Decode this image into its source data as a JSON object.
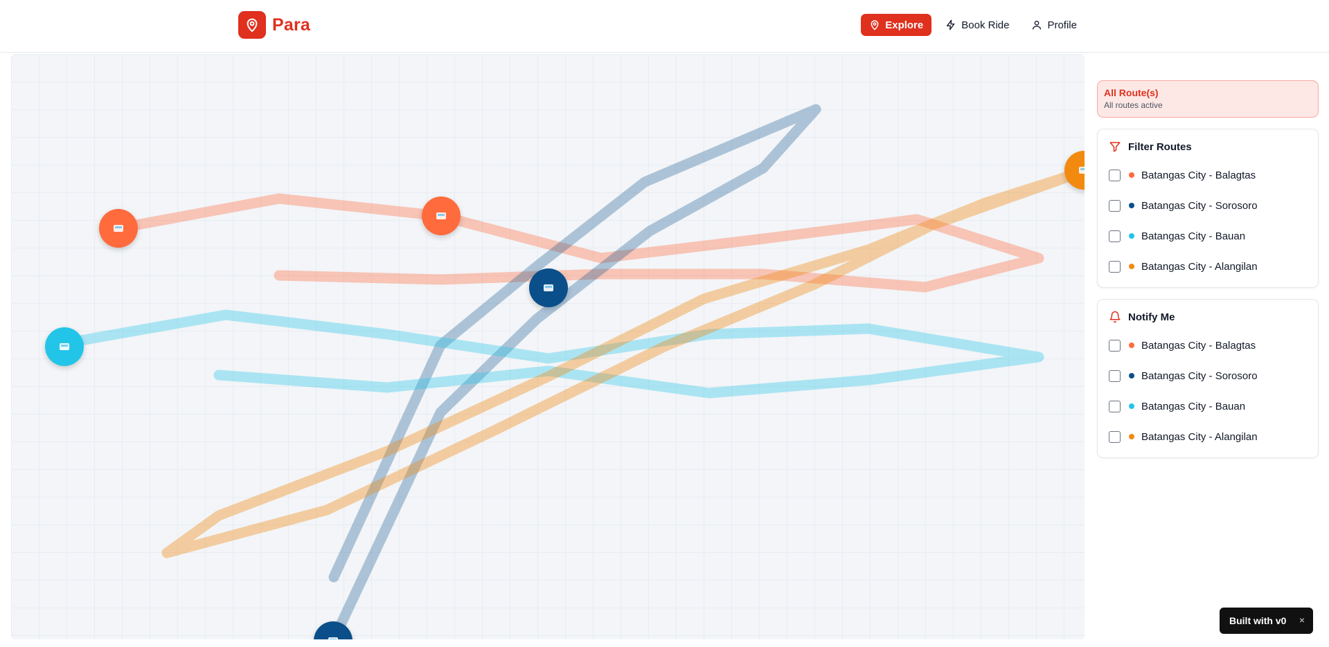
{
  "app": {
    "name": "Para",
    "logo_icon": "map-pin-icon",
    "accent": "#e0301e"
  },
  "nav": {
    "items": [
      {
        "label": "Explore",
        "icon": "map-pin-icon",
        "active": true
      },
      {
        "label": "Book Ride",
        "icon": "bolt-icon",
        "active": false
      },
      {
        "label": "Profile",
        "icon": "user-icon",
        "active": false
      }
    ]
  },
  "map": {
    "routes": [
      {
        "name": "Batangas City - Balagtas",
        "color": "#ff6b3d"
      },
      {
        "name": "Batangas City - Sorosoro",
        "color": "#0a4f8a"
      },
      {
        "name": "Batangas City - Bauan",
        "color": "#22c5e8"
      },
      {
        "name": "Batangas City - Alangilan",
        "color": "#f38a10"
      }
    ],
    "markers": [
      {
        "route": "Batangas City - Balagtas",
        "vehicle": "jeepney-icon"
      },
      {
        "route": "Batangas City - Balagtas",
        "vehicle": "bus-icon"
      },
      {
        "route": "Batangas City - Sorosoro",
        "vehicle": "bus-icon"
      },
      {
        "route": "Batangas City - Bauan",
        "vehicle": "jeepney-icon"
      },
      {
        "route": "Batangas City - Alangilan",
        "vehicle": "bus-icon"
      },
      {
        "route": "Batangas City - Sorosoro",
        "vehicle": "bus-icon"
      }
    ]
  },
  "status": {
    "title": "All Route(s)",
    "subtitle": "All routes active"
  },
  "filter": {
    "title": "Filter Routes",
    "icon": "filter-icon",
    "items": [
      {
        "label": "Batangas City - Balagtas",
        "color": "#ff6b3d",
        "checked": false
      },
      {
        "label": "Batangas City - Sorosoro",
        "color": "#0a4f8a",
        "checked": false
      },
      {
        "label": "Batangas City - Bauan",
        "color": "#22c5e8",
        "checked": false
      },
      {
        "label": "Batangas City - Alangilan",
        "color": "#f38a10",
        "checked": false
      }
    ]
  },
  "notify": {
    "title": "Notify Me",
    "icon": "bell-icon",
    "items": [
      {
        "label": "Batangas City - Balagtas",
        "color": "#ff6b3d",
        "checked": false
      },
      {
        "label": "Batangas City - Sorosoro",
        "color": "#0a4f8a",
        "checked": false
      },
      {
        "label": "Batangas City - Bauan",
        "color": "#22c5e8",
        "checked": false
      },
      {
        "label": "Batangas City - Alangilan",
        "color": "#f38a10",
        "checked": false
      }
    ]
  },
  "badge": {
    "label": "Built with v0",
    "close": "×"
  }
}
